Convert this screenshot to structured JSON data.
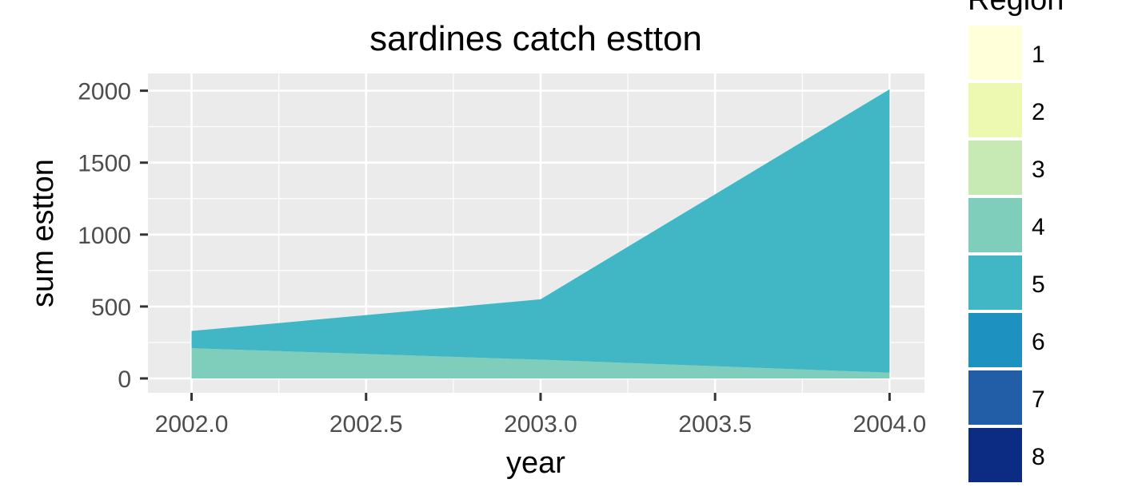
{
  "chart_data": {
    "type": "area",
    "title": "sardines catch estton",
    "xlabel": "year",
    "ylabel": "sum estton",
    "x": [
      2002,
      2003,
      2004
    ],
    "xlim": [
      2001.875,
      2004.1
    ],
    "ylim": [
      -100,
      2120
    ],
    "xticks": [
      2002.0,
      2002.5,
      2003.0,
      2003.5,
      2004.0
    ],
    "xtick_labels": [
      "2002.0",
      "2002.5",
      "2003.0",
      "2003.5",
      "2004.0"
    ],
    "yticks": [
      0,
      500,
      1000,
      1500,
      2000
    ],
    "ytick_labels": [
      "0",
      "500",
      "1000",
      "1500",
      "2000"
    ],
    "stacked": true,
    "series": [
      {
        "name": "4",
        "color": "#7fcdbb",
        "values": [
          210,
          130,
          40
        ]
      },
      {
        "name": "5",
        "color": "#41b6c4",
        "values": [
          120,
          420,
          1970
        ]
      }
    ],
    "grid": true,
    "legend": {
      "title": "Region",
      "position": "right",
      "entries": [
        {
          "label": "1",
          "color": "#ffffd9"
        },
        {
          "label": "2",
          "color": "#edf8b1"
        },
        {
          "label": "3",
          "color": "#c7e9b4"
        },
        {
          "label": "4",
          "color": "#7fcdbb"
        },
        {
          "label": "5",
          "color": "#41b6c4"
        },
        {
          "label": "6",
          "color": "#1d91c0"
        },
        {
          "label": "7",
          "color": "#225ea8"
        },
        {
          "label": "8",
          "color": "#0c2c84"
        }
      ]
    }
  }
}
